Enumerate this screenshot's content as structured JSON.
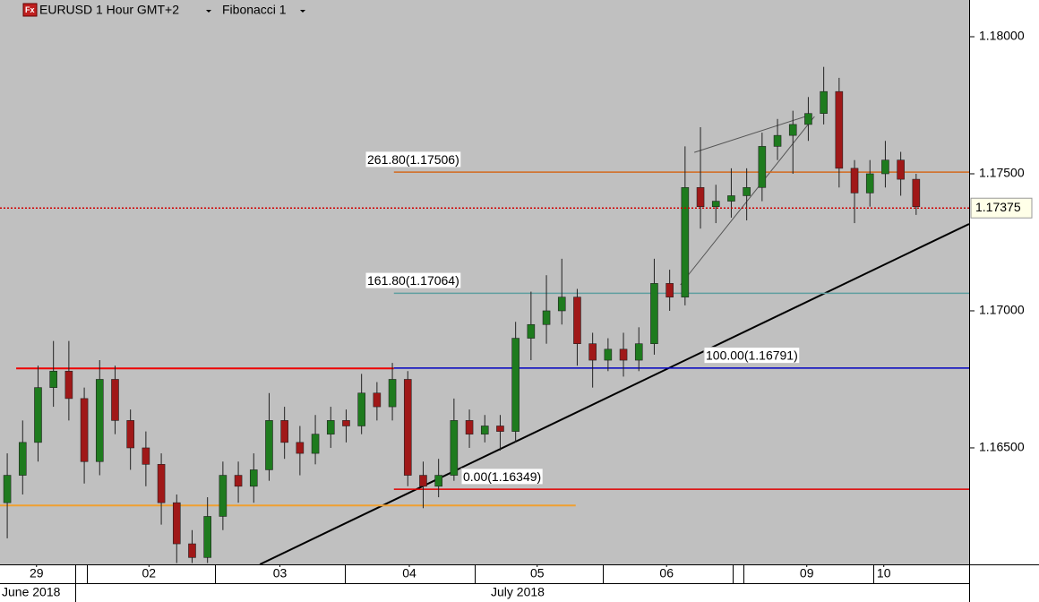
{
  "header": {
    "icon": "Fx",
    "symbol": "EURUSD 1 Hour GMT+2",
    "study": "Fibonacci 1"
  },
  "chart_data": {
    "type": "candlestick",
    "x": [
      0,
      1,
      2,
      3,
      4,
      5,
      6,
      7,
      8,
      9,
      10,
      11,
      12,
      13,
      14,
      15,
      16,
      17,
      18,
      19,
      20,
      21,
      22,
      23,
      24,
      25,
      26,
      27,
      28,
      29,
      30,
      31,
      32,
      33,
      34,
      35,
      36,
      37,
      38,
      39,
      40,
      41,
      42,
      43,
      44,
      45,
      46,
      47,
      48,
      49,
      50,
      51,
      52,
      53,
      54,
      55,
      56,
      57,
      58,
      59
    ],
    "open": [
      1.163,
      1.164,
      1.1652,
      1.1672,
      1.1678,
      1.1668,
      1.1645,
      1.1675,
      1.166,
      1.165,
      1.1644,
      1.163,
      1.1615,
      1.161,
      1.1625,
      1.164,
      1.1636,
      1.1642,
      1.166,
      1.1652,
      1.1648,
      1.1655,
      1.166,
      1.1658,
      1.167,
      1.1665,
      1.1675,
      1.164,
      1.1636,
      1.164,
      1.166,
      1.1655,
      1.1658,
      1.1656,
      1.169,
      1.1695,
      1.17,
      1.1705,
      1.1688,
      1.1682,
      1.1686,
      1.1682,
      1.1688,
      1.171,
      1.1705,
      1.1745,
      1.1738,
      1.174,
      1.1742,
      1.1745,
      1.176,
      1.1764,
      1.1768,
      1.1772,
      1.178,
      1.1752,
      1.1743,
      1.175,
      1.1755,
      1.1748
    ],
    "high": [
      1.1648,
      1.166,
      1.168,
      1.1689,
      1.1689,
      1.1672,
      1.1682,
      1.168,
      1.1664,
      1.1656,
      1.1648,
      1.1633,
      1.162,
      1.1632,
      1.1645,
      1.1645,
      1.1648,
      1.167,
      1.1665,
      1.1658,
      1.1662,
      1.1665,
      1.1664,
      1.1677,
      1.1674,
      1.1681,
      1.1678,
      1.1645,
      1.1646,
      1.1668,
      1.1664,
      1.1662,
      1.1662,
      1.1696,
      1.1707,
      1.1713,
      1.1719,
      1.1708,
      1.1692,
      1.169,
      1.1692,
      1.1694,
      1.1719,
      1.1715,
      1.176,
      1.1767,
      1.1746,
      1.1752,
      1.1752,
      1.1765,
      1.177,
      1.1773,
      1.1778,
      1.1789,
      1.1785,
      1.1755,
      1.1755,
      1.1762,
      1.1758,
      1.175
    ],
    "low": [
      1.1617,
      1.1633,
      1.1645,
      1.1665,
      1.166,
      1.1637,
      1.164,
      1.1655,
      1.1642,
      1.1636,
      1.1622,
      1.1608,
      1.1608,
      1.1608,
      1.162,
      1.163,
      1.163,
      1.1638,
      1.1646,
      1.164,
      1.1644,
      1.165,
      1.1652,
      1.1655,
      1.166,
      1.166,
      1.1636,
      1.1628,
      1.1632,
      1.1638,
      1.165,
      1.1652,
      1.1649,
      1.1652,
      1.1682,
      1.1688,
      1.1695,
      1.168,
      1.1672,
      1.1678,
      1.1676,
      1.1678,
      1.1684,
      1.17,
      1.1702,
      1.173,
      1.1732,
      1.1734,
      1.1733,
      1.174,
      1.1755,
      1.175,
      1.1762,
      1.1768,
      1.1745,
      1.1732,
      1.1738,
      1.1745,
      1.1742,
      1.1735
    ],
    "close": [
      1.164,
      1.1652,
      1.1672,
      1.1678,
      1.1668,
      1.1645,
      1.1675,
      1.166,
      1.165,
      1.1644,
      1.163,
      1.1615,
      1.161,
      1.1625,
      1.164,
      1.1636,
      1.1642,
      1.166,
      1.1652,
      1.1648,
      1.1655,
      1.166,
      1.1658,
      1.167,
      1.1665,
      1.1675,
      1.164,
      1.1636,
      1.164,
      1.166,
      1.1655,
      1.1658,
      1.1656,
      1.169,
      1.1695,
      1.17,
      1.1705,
      1.1688,
      1.1682,
      1.1686,
      1.1682,
      1.1688,
      1.171,
      1.1705,
      1.1745,
      1.1738,
      1.174,
      1.1742,
      1.1745,
      1.176,
      1.1764,
      1.1768,
      1.1772,
      1.178,
      1.1752,
      1.1743,
      1.175,
      1.1755,
      1.1748,
      1.1738
    ],
    "up_color": "#1e7b1e",
    "down_color": "#a01818",
    "xlim": [
      -0.47,
      62.44
    ],
    "ylim": [
      1.16075,
      1.18134
    ],
    "yticks": [
      {
        "value": 1.18,
        "label": "1.18000"
      },
      {
        "value": 1.175,
        "label": "1.17500"
      },
      {
        "value": 1.17,
        "label": "1.17000"
      },
      {
        "value": 1.165,
        "label": "1.16500"
      }
    ],
    "xticks": [
      {
        "value": 1.9,
        "label": "29"
      },
      {
        "value": 9.2,
        "label": "02"
      },
      {
        "value": 17.7,
        "label": "03"
      },
      {
        "value": 26.1,
        "label": "04"
      },
      {
        "value": 34.4,
        "label": "05"
      },
      {
        "value": 42.8,
        "label": "06"
      },
      {
        "value": 51.9,
        "label": "09"
      },
      {
        "value": 56.9,
        "label": "10"
      }
    ],
    "period_labels": [
      "June 2018",
      "July 2018"
    ],
    "current_price": 1.17375,
    "current_price_color": "#d00000",
    "fib_levels": [
      {
        "label": "261.80(1.17506)",
        "value": 1.17506,
        "color": "#d2691e"
      },
      {
        "label": "161.80(1.17064)",
        "value": 1.17064,
        "color": "#5f9ea0"
      },
      {
        "label": "100.00(1.16791)",
        "value": 1.16791,
        "color": "#0000c0"
      },
      {
        "label": "0.00(1.16349)",
        "value": 1.16349,
        "color": "#e00000"
      }
    ],
    "fib_start_x": 25.1,
    "drawings": [
      {
        "color": "#000000",
        "x": [
          16.4,
          62.44
        ],
        "y": [
          1.16075,
          1.17317
        ]
      },
      {
        "color": "#ee0000",
        "x": [
          0.58,
          25.1
        ],
        "y": [
          1.1679,
          1.1679
        ]
      },
      {
        "color": "#f0a030",
        "x": [
          -0.47,
          36.9
        ],
        "y": [
          1.1629,
          1.1629
        ]
      },
      {
        "color": "#555555",
        "x": [
          43.7,
          52.4
        ],
        "y": [
          1.17095,
          1.17709
        ]
      },
      {
        "color": "#555555",
        "x": [
          44.6,
          52.2
        ],
        "y": [
          1.17578,
          1.17716
        ]
      }
    ]
  }
}
